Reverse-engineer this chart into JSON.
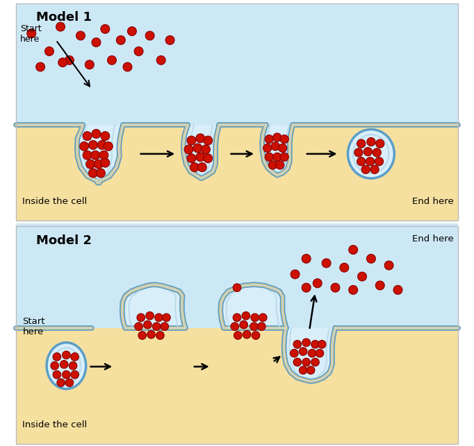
{
  "fig_width": 6.82,
  "fig_height": 6.43,
  "dpi": 100,
  "bg_color": "#ffffff",
  "sky_color": "#cde8f5",
  "ground_color": "#f5e0a0",
  "mem_col1": "#5a9ec9",
  "mem_col2": "#b8d8ea",
  "mem_col3": "#e8c87a",
  "vesicle_fill": "#d8eef8",
  "dot_face": "#cc1100",
  "dot_edge": "#880000",
  "model1_title": "Model 1",
  "model2_title": "Model 2",
  "label_start": "Start\nhere",
  "label_end": "End here",
  "label_inside1": "Inside the cell",
  "label_inside2": "Inside the cell",
  "panel_border": "#bbbbbb"
}
